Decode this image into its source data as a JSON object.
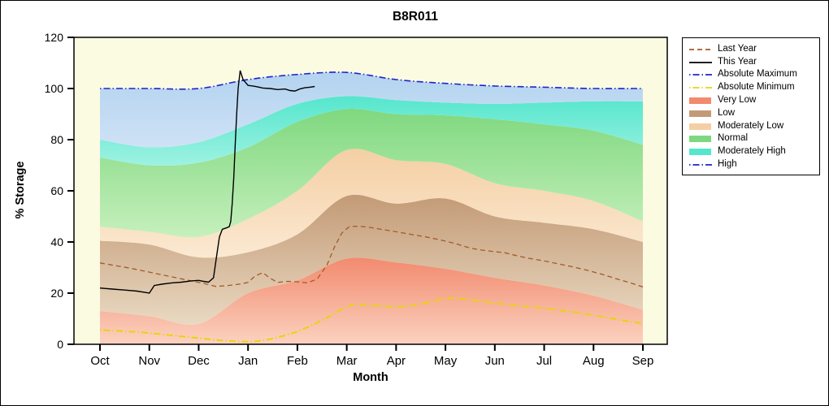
{
  "chart_data": {
    "type": "area",
    "title": "B8R011",
    "xlabel": "Month",
    "ylabel": "% Storage",
    "ylim": [
      0,
      120
    ],
    "yticks": [
      0,
      20,
      40,
      60,
      80,
      100,
      120
    ],
    "categories": [
      "Oct",
      "Nov",
      "Dec",
      "Jan",
      "Feb",
      "Mar",
      "Apr",
      "May",
      "Jun",
      "Jul",
      "Aug",
      "Sep"
    ],
    "plot_background": "#fbfbe2",
    "legend_position": "right",
    "grid": false,
    "bands": [
      {
        "name": "Very Low",
        "color": "#f28a6e",
        "color2": "#fbd2c0",
        "upper": [
          13,
          11,
          8,
          20,
          25,
          33.5,
          32,
          29.5,
          26,
          23,
          19,
          13.5
        ]
      },
      {
        "name": "Low",
        "color": "#c39a76",
        "color2": "#e9d9c2",
        "upper": [
          40.5,
          39,
          34,
          36,
          43,
          58,
          55,
          57,
          50,
          47.5,
          45,
          40
        ]
      },
      {
        "name": "Moderately Low",
        "color": "#f4cfa4",
        "color2": "#fbe9d2",
        "upper": [
          46,
          44,
          42,
          49,
          60,
          76,
          72,
          70.5,
          63,
          60,
          56,
          48
        ]
      },
      {
        "name": "Normal",
        "color": "#7fd87f",
        "color2": "#c6f0bd",
        "upper": [
          73,
          70,
          71,
          77,
          87,
          92,
          90,
          89.5,
          88,
          86,
          83.5,
          78
        ]
      },
      {
        "name": "Moderately High",
        "color": "#55e6cd",
        "color2": "#9ef2e2",
        "upper": [
          80,
          77,
          79,
          86,
          94,
          97,
          95.5,
          94.5,
          94,
          94.5,
          95,
          95
        ]
      },
      {
        "name": "High",
        "color": "#b3d3ef",
        "color2": "#cfe2f6",
        "upper": [
          100,
          100,
          100,
          103.5,
          105.5,
          106.3,
          103.5,
          102,
          101,
          100.5,
          100,
          100
        ]
      }
    ],
    "series": [
      {
        "name": "Absolute Maximum",
        "color": "#2222cc",
        "style": "dashdot",
        "width": 1.6,
        "smooth": true,
        "x": [
          0,
          1,
          2,
          3,
          4,
          5,
          6,
          7,
          8,
          9,
          10,
          11
        ],
        "y": [
          100,
          100,
          100,
          103.5,
          105.5,
          106.3,
          103.5,
          102,
          101,
          100.5,
          100,
          100
        ]
      },
      {
        "name": "Absolute Minimum",
        "color": "#e8d40a",
        "style": "dashdot",
        "width": 2,
        "smooth": false,
        "x": [
          0,
          0.4,
          0.8,
          1.2,
          1.6,
          2.0,
          2.4,
          2.8,
          3.1,
          3.4,
          3.7,
          4.0,
          4.3,
          4.6,
          4.85,
          5.1,
          5.4,
          5.7,
          6.0,
          6.3,
          6.6,
          6.9,
          7.15,
          7.45,
          7.75,
          8.05,
          8.4,
          8.8,
          9.2,
          9.6,
          10.0,
          10.4,
          10.7,
          11.0
        ],
        "y": [
          5.6,
          5.2,
          4.8,
          4.0,
          3.2,
          2.4,
          1.6,
          1.1,
          1.0,
          1.8,
          3.2,
          5.0,
          7.4,
          10.4,
          13.2,
          15.4,
          15.6,
          15.0,
          14.6,
          15.0,
          16.2,
          17.6,
          18.2,
          17.6,
          16.8,
          16.0,
          15.2,
          14.4,
          13.6,
          12.6,
          11.4,
          10.0,
          9.0,
          8.2
        ]
      },
      {
        "name": "Last Year",
        "color": "#a45a28",
        "style": "dashed",
        "width": 1.3,
        "smooth": false,
        "x": [
          0,
          0.3,
          0.6,
          0.9,
          1.2,
          1.5,
          1.8,
          2.1,
          2.35,
          2.6,
          2.85,
          3.0,
          3.15,
          3.3,
          3.45,
          3.6,
          3.8,
          4.0,
          4.2,
          4.4,
          4.6,
          4.75,
          4.9,
          5.05,
          5.25,
          5.5,
          5.75,
          6.0,
          6.3,
          6.6,
          6.9,
          7.2,
          7.5,
          7.75,
          8.0,
          8.2,
          8.45,
          8.7,
          9.0,
          9.3,
          9.6,
          9.9,
          10.2,
          10.5,
          10.75,
          11.0
        ],
        "y": [
          31.8,
          30.8,
          29.8,
          28.6,
          27.4,
          26.2,
          25,
          23.8,
          22.6,
          23,
          23.6,
          24.2,
          26.8,
          28,
          25.8,
          24.2,
          24.6,
          24.4,
          24,
          25.5,
          31,
          38,
          43.5,
          46,
          46.2,
          45.6,
          44.8,
          44,
          43,
          42,
          40.8,
          39.4,
          37.6,
          36.8,
          36.2,
          35.8,
          34.6,
          33.6,
          32.6,
          31.4,
          30.2,
          28.8,
          27.2,
          25.4,
          24,
          22.4
        ]
      },
      {
        "name": "This Year",
        "color": "#000000",
        "style": "solid",
        "width": 1.4,
        "smooth": false,
        "x": [
          0,
          0.25,
          0.5,
          0.75,
          0.95,
          1.0,
          1.05,
          1.1,
          1.25,
          1.45,
          1.65,
          1.85,
          2.0,
          2.1,
          2.2,
          2.3,
          2.36,
          2.42,
          2.48,
          2.56,
          2.62,
          2.65,
          2.68,
          2.71,
          2.74,
          2.77,
          2.8,
          2.84,
          2.9,
          3.0,
          3.1,
          3.2,
          3.3,
          3.45,
          3.6,
          3.75,
          3.85,
          3.95,
          4.05,
          4.15,
          4.25,
          4.35
        ],
        "y": [
          22,
          21.6,
          21.2,
          20.8,
          20.2,
          20,
          21.5,
          23,
          23.5,
          24,
          24.3,
          24.8,
          25,
          24.6,
          24.3,
          26,
          34,
          42,
          45,
          45.5,
          46,
          48,
          55,
          65,
          78,
          90,
          100,
          107,
          103.5,
          101.2,
          101,
          100.6,
          100.2,
          100,
          99.6,
          99.8,
          99.2,
          99,
          99.8,
          100.3,
          100.5,
          100.8
        ]
      }
    ],
    "legend": [
      {
        "label": "Last Year",
        "swatch": "line",
        "style": "dashed",
        "color": "#a45a28"
      },
      {
        "label": "This Year",
        "swatch": "line",
        "style": "solid",
        "color": "#000000"
      },
      {
        "label": "Absolute Maximum",
        "swatch": "line",
        "style": "dashdot",
        "color": "#2222cc"
      },
      {
        "label": "Absolute Minimum",
        "swatch": "line",
        "style": "dashdot",
        "color": "#e8d40a"
      },
      {
        "label": "Very Low",
        "swatch": "box",
        "color": "#f28a6e"
      },
      {
        "label": "Low",
        "swatch": "box",
        "color": "#c39a76"
      },
      {
        "label": "Moderately Low",
        "swatch": "box",
        "color": "#f4cfa4"
      },
      {
        "label": "Normal",
        "swatch": "box",
        "color": "#7fd87f"
      },
      {
        "label": "Moderately High",
        "swatch": "box",
        "color": "#55e6cd"
      },
      {
        "label": "High",
        "swatch": "line",
        "style": "dashdot",
        "color": "#2222cc"
      }
    ]
  }
}
